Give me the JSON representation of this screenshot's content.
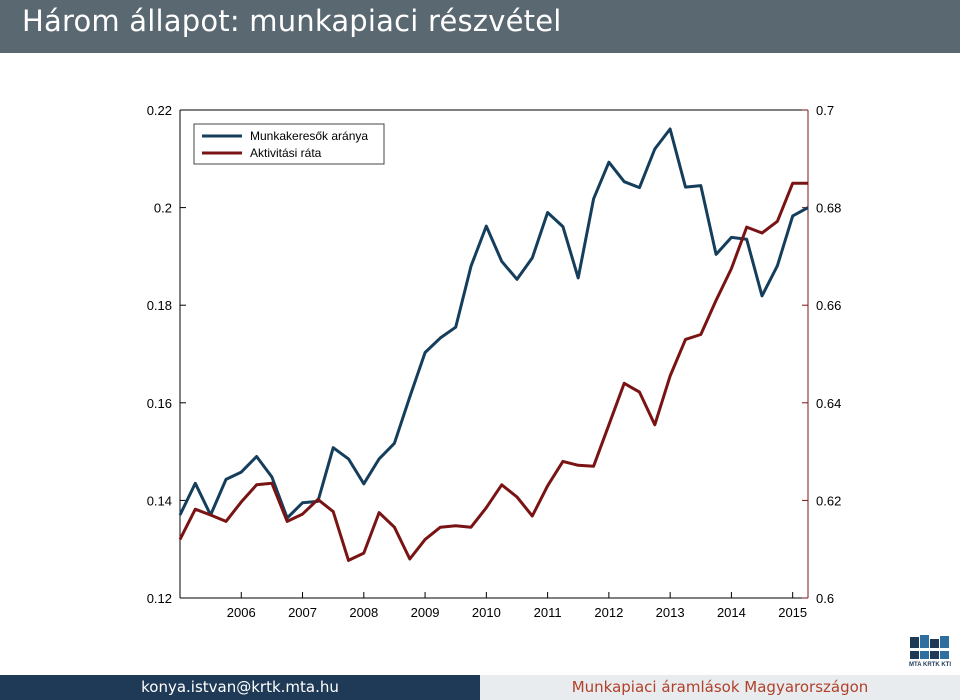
{
  "header": {
    "title": "Három állapot: munkapiaci részvétel"
  },
  "footer": {
    "left_text": "konya.istvan@krtk.mta.hu",
    "right_text": "Munkapiaci áramlások Magyarországon"
  },
  "logo": {
    "text": "MTA KRTK KTI"
  },
  "colors": {
    "header_bg": "#5a6872",
    "series_blue": "#153e5c",
    "series_red": "#7a1414",
    "footer_left_bg": "#1f3a57",
    "footer_right_text": "#b0402a"
  },
  "chart_data": {
    "type": "line",
    "title": "",
    "xlabel": "",
    "legend_position": "top-left",
    "grid": false,
    "x_tick_labels": [
      "2006",
      "2007",
      "2008",
      "2009",
      "2010",
      "2011",
      "2012",
      "2013",
      "2014",
      "2015"
    ],
    "left_axis": {
      "ylim": [
        0.12,
        0.22
      ],
      "ticks": [
        "0.12",
        "0.14",
        "0.16",
        "0.18",
        "0.2",
        "0.22"
      ]
    },
    "right_axis": {
      "ylim": [
        0.6,
        0.7
      ],
      "ticks": [
        "0.6",
        "0.62",
        "0.64",
        "0.66",
        "0.68",
        "0.7"
      ]
    },
    "quarters": [
      "2005Q1",
      "2005Q2",
      "2005Q3",
      "2005Q4",
      "2006Q1",
      "2006Q2",
      "2006Q3",
      "2006Q4",
      "2007Q1",
      "2007Q2",
      "2007Q3",
      "2007Q4",
      "2008Q1",
      "2008Q2",
      "2008Q3",
      "2008Q4",
      "2009Q1",
      "2009Q2",
      "2009Q3",
      "2009Q4",
      "2010Q1",
      "2010Q2",
      "2010Q3",
      "2010Q4",
      "2011Q1",
      "2011Q2",
      "2011Q3",
      "2011Q4",
      "2012Q1",
      "2012Q2",
      "2012Q3",
      "2012Q4",
      "2013Q1",
      "2013Q2",
      "2013Q3",
      "2013Q4",
      "2014Q1",
      "2014Q2",
      "2014Q3",
      "2014Q4",
      "2015Q1",
      "2015Q2"
    ],
    "series": [
      {
        "name": "Munkakeresők aránya",
        "axis": "left",
        "values": [
          0.137,
          0.1435,
          0.137,
          0.1443,
          0.1458,
          0.149,
          0.1448,
          0.1364,
          0.1395,
          0.1398,
          0.1508,
          0.1485,
          0.1434,
          0.1485,
          0.1517,
          0.1612,
          0.1703,
          0.1733,
          0.1755,
          0.188,
          0.1962,
          0.189,
          0.1853,
          0.1897,
          0.199,
          0.1961,
          0.1856,
          0.2018,
          0.2093,
          0.2053,
          0.2041,
          0.212,
          0.2161,
          0.2042,
          0.2045,
          0.1904,
          0.1939,
          0.1935,
          0.1819,
          0.1881,
          0.1983,
          0.2
        ]
      },
      {
        "name": "Aktivitási ráta",
        "axis": "right",
        "values": [
          0.612,
          0.6182,
          0.617,
          0.6157,
          0.6197,
          0.6232,
          0.6235,
          0.6157,
          0.6172,
          0.6202,
          0.6177,
          0.6077,
          0.6092,
          0.6175,
          0.6145,
          0.608,
          0.612,
          0.6145,
          0.6148,
          0.6145,
          0.6185,
          0.6232,
          0.6207,
          0.6168,
          0.623,
          0.628,
          0.6272,
          0.627,
          0.6355,
          0.644,
          0.6422,
          0.6355,
          0.6455,
          0.653,
          0.654,
          0.661,
          0.6675,
          0.676,
          0.6748,
          0.6772,
          0.685,
          0.685
        ]
      }
    ]
  }
}
